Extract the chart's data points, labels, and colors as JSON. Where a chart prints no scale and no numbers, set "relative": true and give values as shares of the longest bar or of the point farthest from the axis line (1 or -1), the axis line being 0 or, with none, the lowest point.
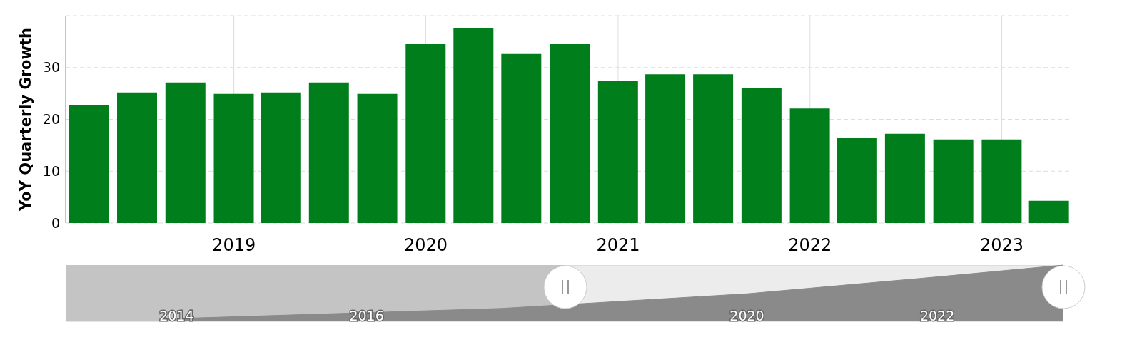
{
  "chart_data": [
    {
      "type": "bar",
      "ylabel": "YoY Quarterly Growth",
      "x": [
        "2018-04",
        "2018-07",
        "2018-10",
        "2019-01",
        "2019-04",
        "2019-07",
        "2019-10",
        "2020-01",
        "2020-04",
        "2020-07",
        "2020-10",
        "2021-01",
        "2021-04",
        "2021-07",
        "2021-10",
        "2022-01",
        "2022-04",
        "2022-07",
        "2022-10",
        "2023-01",
        "2023-04"
      ],
      "values": [
        22.7,
        25.2,
        27.1,
        24.9,
        25.2,
        27.1,
        24.9,
        34.5,
        37.6,
        32.6,
        34.5,
        27.4,
        28.7,
        28.7,
        26.0,
        22.1,
        16.4,
        17.2,
        16.1,
        16.1,
        4.3
      ],
      "color": "#007e1b",
      "xlim": [
        "2018-02-15",
        "2023-05-12"
      ],
      "xticks": [
        "2019",
        "2020",
        "2021",
        "2022",
        "2023"
      ],
      "ylim": [
        0,
        40
      ],
      "yticks": [
        0,
        10,
        20,
        30,
        {
          "value": 40,
          "label": null
        }
      ],
      "grid": true
    },
    {
      "type": "area",
      "relative": true,
      "x": [
        "2014-01",
        "2017-06",
        "2020-01",
        "2022-01",
        "2023-05"
      ],
      "values": [
        0.05,
        0.23,
        0.49,
        0.79,
        1
      ],
      "color": "#8a8a8a",
      "xlim": [
        "2012-11",
        "2023-05"
      ],
      "xticks": [
        "2014",
        "2016",
        "2020",
        "2022"
      ],
      "bands": [
        {
          "axis": "x",
          "from": "2012-11",
          "to": "2018-02",
          "color": "#c4c4c4"
        }
      ],
      "grid": "x"
    }
  ]
}
